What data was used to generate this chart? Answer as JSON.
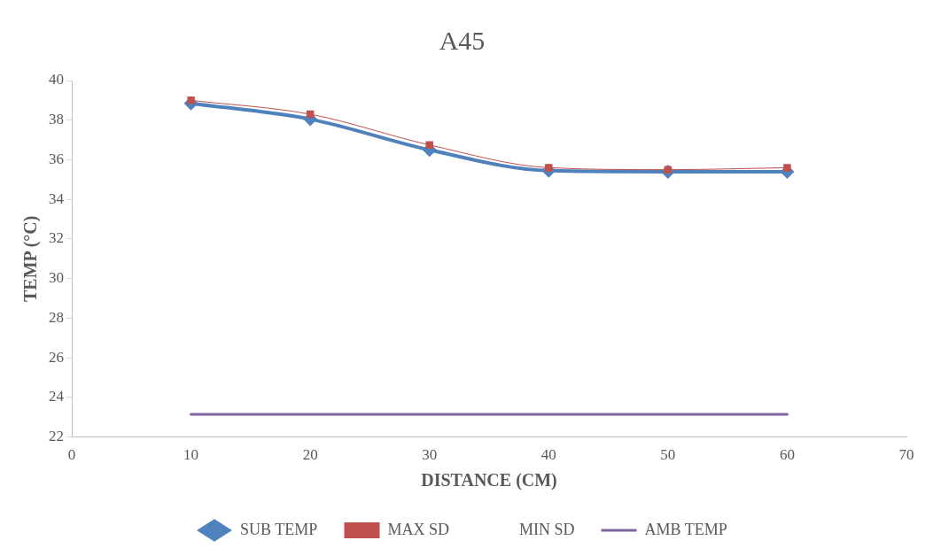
{
  "chart_data": {
    "type": "line",
    "title": "A45",
    "xlabel": "DISTANCE (CM)",
    "ylabel": "TEMP (°C)",
    "x": [
      10,
      20,
      30,
      40,
      50,
      60
    ],
    "series": [
      {
        "name": "SUB TEMP",
        "color": "#4f81bd",
        "marker": "diamond",
        "values": [
          38.85,
          38.05,
          36.5,
          35.45,
          35.4,
          35.4
        ]
      },
      {
        "name": "MAX SD",
        "color": "#c0504d",
        "marker": "square",
        "values": [
          39.0,
          38.3,
          36.75,
          35.6,
          35.5,
          35.6
        ]
      },
      {
        "name": "MIN SD",
        "values": [
          null,
          null,
          null,
          null,
          null,
          null
        ]
      },
      {
        "name": "AMB TEMP",
        "color": "#8064a2",
        "marker": "none",
        "values": [
          23.15,
          23.15,
          23.15,
          23.15,
          23.15,
          23.15
        ]
      }
    ],
    "xlim": [
      0,
      70
    ],
    "xticks": [
      0,
      10,
      20,
      30,
      40,
      50,
      60,
      70
    ],
    "ylim": [
      22,
      40
    ],
    "yticks": [
      22,
      24,
      26,
      28,
      30,
      32,
      34,
      36,
      38,
      40
    ],
    "grid": false,
    "legend": "bottom"
  }
}
